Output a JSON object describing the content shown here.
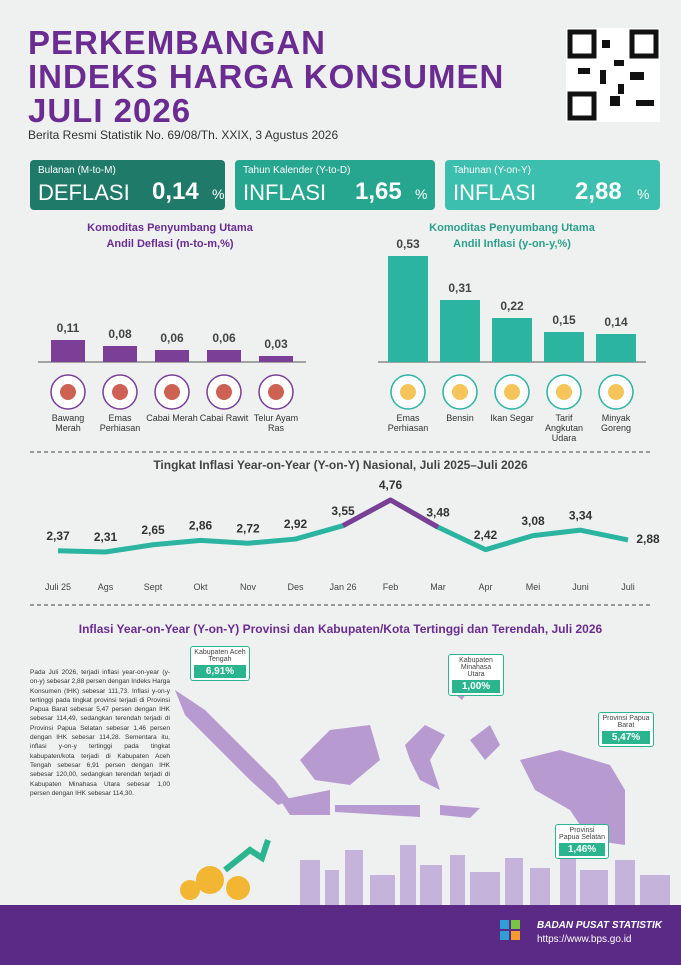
{
  "header": {
    "title": [
      "PERKEMBANGAN",
      "INDEKS HARGA KONSUMEN",
      "JULI 2026"
    ],
    "subtitle": "Berita Resmi Statistik No. 69/08/Th. XXIX, 3 Agustus 2026"
  },
  "boxes": [
    {
      "label": "Bulanan (M-to-M)",
      "kind": "DEFLASI",
      "value": "0,14",
      "unit": "%"
    },
    {
      "label": "Tahun Kalender (Y-to-D)",
      "kind": "INFLASI",
      "value": "1,65",
      "unit": "%"
    },
    {
      "label": "Tahunan (Y-on-Y)",
      "kind": "INFLASI",
      "value": "2,88",
      "unit": "%"
    }
  ],
  "chart_data": [
    {
      "type": "bar",
      "title": "Komoditas Penyumbang Utama",
      "subtitle": "Andil Deflasi (m-to-m,%)",
      "categories": [
        "Bawang Merah",
        "Emas Perhiasan",
        "Cabai Merah",
        "Cabai Rawit",
        "Telur Ayam Ras"
      ],
      "values": [
        0.11,
        0.08,
        0.06,
        0.06,
        0.03
      ],
      "value_labels": [
        "0,11",
        "0,08",
        "0,06",
        "0,06",
        "0,03"
      ],
      "color": "#7b3f98"
    },
    {
      "type": "bar",
      "title": "Komoditas Penyumbang Utama",
      "subtitle": "Andil Inflasi (y-on-y,%)",
      "categories": [
        "Emas Perhiasan",
        "Bensin",
        "Ikan Segar",
        "Tarif Angkutan Udara",
        "Minyak Goreng"
      ],
      "values": [
        0.53,
        0.31,
        0.22,
        0.15,
        0.14
      ],
      "value_labels": [
        "0,53",
        "0,31",
        "0,22",
        "0,15",
        "0,14"
      ],
      "color": "#2bb5a0"
    },
    {
      "type": "line",
      "title": "Tingkat Inflasi Year-on-Year (Y-on-Y) Nasional, Juli 2025–Juli 2026",
      "categories": [
        "Juli 25",
        "Ags",
        "Sept",
        "Okt",
        "Nov",
        "Des",
        "Jan 26",
        "Feb",
        "Mar",
        "Apr",
        "Mei",
        "Juni",
        "Juli"
      ],
      "values": [
        2.37,
        2.31,
        2.65,
        2.86,
        2.72,
        2.92,
        3.55,
        4.76,
        3.48,
        2.42,
        3.08,
        3.34,
        2.88
      ],
      "value_labels": [
        "2,37",
        "2,31",
        "2,65",
        "2,86",
        "2,72",
        "2,92",
        "3,55",
        "4,76",
        "3,48",
        "2,42",
        "3,08",
        "3,34",
        "2,88"
      ],
      "color": "#2bb5a0",
      "highlight_color": "#7b3f98"
    }
  ],
  "map": {
    "title": "Inflasi Year-on-Year (Y-on-Y) Provinsi dan Kabupaten/Kota Tertinggi dan Terendah, Juli 2026",
    "text": "Pada Juli 2026, terjadi inflasi year-on-year (y-on-y) sebesar 2,88 persen dengan Indeks Harga Konsumen (IHK) sebesar 111,73. Inflasi y-on-y tertinggi pada tingkat provinsi terjadi di Provinsi Papua Barat sebesar 5,47 persen dengan IHK sebesar 114,49, sedangkan terendah terjadi di Provinsi Papua Selatan sebesar 1,46 persen dengan IHK sebesar 114,28. Sementara itu, inflasi y-on-y tertinggi pada tingkat kabupaten/kota terjadi di Kabupaten Aceh Tengah sebesar 6,91 persen dengan IHK sebesar 120,00, sedangkan terendah terjadi di Kabupaten Minahasa Utara sebesar 1,00 persen dengan IHK sebesar 114,30.",
    "callouts": [
      {
        "label": "Kabupaten Aceh Tengah",
        "value": "6,91%"
      },
      {
        "label": "Kabupaten Minahasa Utara",
        "value": "1,00%"
      },
      {
        "label": "Provinsi Papua Barat",
        "value": "5,47%"
      },
      {
        "label": "Provinsi Papua Selatan",
        "value": "1,46%"
      }
    ]
  },
  "footer": {
    "org": "BADAN PUSAT STATISTIK",
    "url": "https://www.bps.go.id"
  }
}
